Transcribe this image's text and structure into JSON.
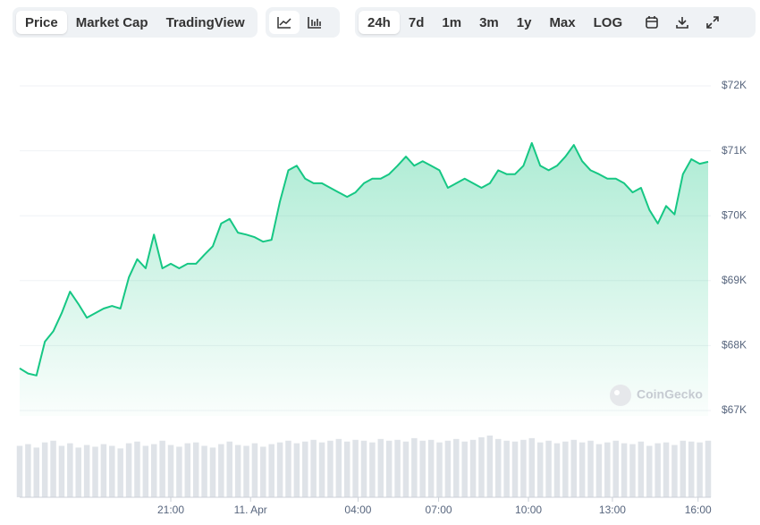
{
  "toolbar": {
    "views": [
      "Price",
      "Market Cap",
      "TradingView"
    ],
    "ranges": [
      "24h",
      "7d",
      "1m",
      "3m",
      "1y",
      "Max",
      "LOG"
    ]
  },
  "watermark": "CoinGecko",
  "chart_data": {
    "type": "area",
    "color": "#16c784",
    "grid": true,
    "values": [
      67650,
      67570,
      67540,
      68060,
      68220,
      68500,
      68830,
      68640,
      68430,
      68500,
      68570,
      68610,
      68570,
      69050,
      69330,
      69190,
      69710,
      69190,
      69260,
      69190,
      69260,
      69260,
      69400,
      69530,
      69880,
      69950,
      69740,
      69710,
      69670,
      69600,
      69630,
      70220,
      70700,
      70770,
      70570,
      70500,
      70500,
      70430,
      70360,
      70290,
      70360,
      70500,
      70570,
      70570,
      70640,
      70770,
      70910,
      70770,
      70840,
      70770,
      70700,
      70430,
      70500,
      70570,
      70500,
      70430,
      70500,
      70700,
      70640,
      70640,
      70770,
      71120,
      70770,
      70700,
      70770,
      70910,
      71090,
      70840,
      70700,
      70640,
      70570,
      70570,
      70500,
      70360,
      70430,
      70090,
      69880,
      70150,
      70020,
      70640,
      70870,
      70800,
      70830
    ],
    "volume": [
      60,
      62,
      58,
      64,
      66,
      60,
      63,
      58,
      61,
      59,
      62,
      60,
      57,
      63,
      65,
      60,
      62,
      66,
      61,
      59,
      63,
      64,
      60,
      58,
      62,
      65,
      61,
      60,
      63,
      59,
      62,
      64,
      66,
      63,
      65,
      67,
      64,
      66,
      68,
      65,
      67,
      66,
      64,
      68,
      66,
      67,
      65,
      69,
      66,
      67,
      64,
      66,
      68,
      65,
      67,
      70,
      72,
      68,
      66,
      65,
      67,
      69,
      64,
      66,
      63,
      65,
      67,
      64,
      66,
      62,
      64,
      66,
      63,
      62,
      65,
      60,
      63,
      64,
      61,
      66,
      65,
      64,
      66
    ],
    "xlim": [
      0,
      82
    ],
    "xticks": [
      {
        "value": 18,
        "label": "21:00"
      },
      {
        "value": 27.5,
        "label": "11. Apr"
      },
      {
        "value": 40.3,
        "label": "04:00"
      },
      {
        "value": 49.9,
        "label": "07:00"
      },
      {
        "value": 60.6,
        "label": "10:00"
      },
      {
        "value": 70.6,
        "label": "13:00"
      },
      {
        "value": 80.8,
        "label": "16:00"
      }
    ],
    "ylim": [
      67000,
      72000
    ],
    "yticks": [
      {
        "value": 67000,
        "label": "$67K"
      },
      {
        "value": 68000,
        "label": "$68K"
      },
      {
        "value": 69000,
        "label": "$69K"
      },
      {
        "value": 70000,
        "label": "$70K"
      },
      {
        "value": 71000,
        "label": "$71K"
      },
      {
        "value": 72000,
        "label": "$72K"
      }
    ]
  }
}
